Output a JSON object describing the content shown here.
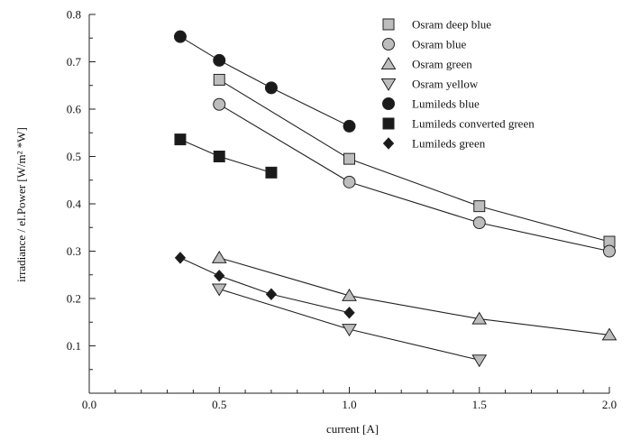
{
  "chart_data": {
    "type": "line",
    "title": "",
    "xlabel": "current  [A]",
    "ylabel": "irradiance / el.Power [W/m² *W]",
    "xlim": [
      0.0,
      2.0
    ],
    "ylim": [
      0.0,
      0.8
    ],
    "x_ticks": [
      0.0,
      0.5,
      1.0,
      1.5,
      2.0
    ],
    "x_tick_labels": [
      "0.0",
      "0.5",
      "1.0",
      "1.5",
      "2.0"
    ],
    "y_ticks": [
      0.1,
      0.2,
      0.3,
      0.4,
      0.5,
      0.6,
      0.7,
      0.8
    ],
    "y_tick_labels": [
      "0.1",
      "0.2",
      "0.3",
      "0.4",
      "0.5",
      "0.6",
      "0.7",
      "0.8"
    ],
    "grid": false,
    "legend_position": "top-right",
    "series": [
      {
        "name": "Osram deep blue",
        "marker": "square",
        "fill": "#bdbdbd",
        "x": [
          0.5,
          1.0,
          1.5,
          2.0
        ],
        "y": [
          0.662,
          0.495,
          0.395,
          0.32
        ]
      },
      {
        "name": "Osram blue",
        "marker": "circle",
        "fill": "#bdbdbd",
        "x": [
          0.5,
          1.0,
          1.5,
          2.0
        ],
        "y": [
          0.61,
          0.446,
          0.36,
          0.3
        ]
      },
      {
        "name": "Osram green",
        "marker": "triangle-up",
        "fill": "#bdbdbd",
        "x": [
          0.5,
          1.0,
          1.5,
          2.0
        ],
        "y": [
          0.286,
          0.206,
          0.157,
          0.123
        ]
      },
      {
        "name": "Osram yellow",
        "marker": "triangle-down",
        "fill": "#bdbdbd",
        "x": [
          0.5,
          1.0,
          1.5
        ],
        "y": [
          0.22,
          0.135,
          0.07
        ]
      },
      {
        "name": "Lumileds blue",
        "marker": "circle",
        "fill": "#1a1a1a",
        "x": [
          0.35,
          0.5,
          0.7,
          1.0
        ],
        "y": [
          0.753,
          0.703,
          0.645,
          0.564
        ]
      },
      {
        "name": "Lumileds converted green",
        "marker": "square",
        "fill": "#1a1a1a",
        "x": [
          0.35,
          0.5,
          0.7
        ],
        "y": [
          0.536,
          0.5,
          0.466
        ]
      },
      {
        "name": "Lumileds green",
        "marker": "diamond",
        "fill": "#1a1a1a",
        "x": [
          0.35,
          0.5,
          0.7,
          1.0
        ],
        "y": [
          0.286,
          0.248,
          0.209,
          0.17
        ]
      }
    ]
  }
}
